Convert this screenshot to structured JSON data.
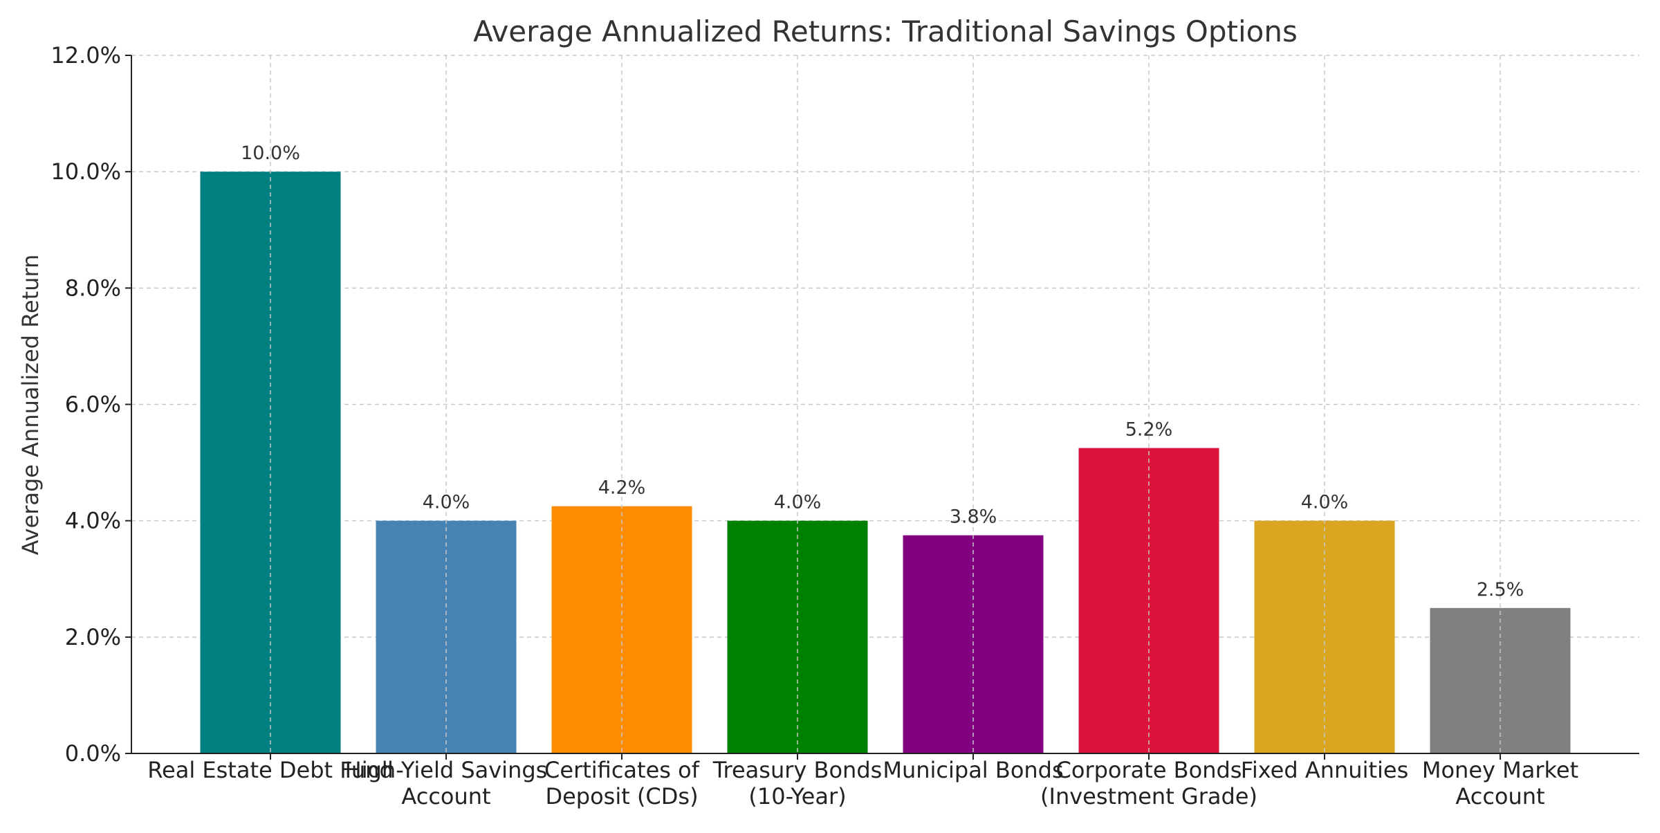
{
  "chart_data": {
    "type": "bar",
    "title": "Average Annualized Returns: Traditional Savings Options",
    "xlabel": "",
    "ylabel": "Average Annualized Return",
    "ylim": [
      0,
      12
    ],
    "yticks": [
      0,
      2,
      4,
      6,
      8,
      10,
      12
    ],
    "ytick_labels": [
      "0.0%",
      "2.0%",
      "4.0%",
      "6.0%",
      "8.0%",
      "10.0%",
      "12.0%"
    ],
    "grid": true,
    "categories": [
      [
        "Real Estate Debt Fund"
      ],
      [
        "High-Yield Savings",
        "Account"
      ],
      [
        "Certificates of",
        "Deposit (CDs)"
      ],
      [
        "Treasury Bonds",
        "(10-Year)"
      ],
      [
        "Municipal Bonds"
      ],
      [
        "Corporate Bonds",
        "(Investment Grade)"
      ],
      [
        "Fixed Annuities"
      ],
      [
        "Money Market",
        "Account"
      ]
    ],
    "values": [
      10.0,
      4.0,
      4.25,
      4.0,
      3.75,
      5.25,
      4.0,
      2.5
    ],
    "value_labels": [
      "10.0%",
      "4.0%",
      "4.2%",
      "4.0%",
      "3.8%",
      "5.2%",
      "4.0%",
      "2.5%"
    ],
    "colors": [
      "#008080",
      "#4682B4",
      "#FF8C00",
      "#008000",
      "#800080",
      "#DC143C",
      "#DAA520",
      "#808080"
    ]
  }
}
